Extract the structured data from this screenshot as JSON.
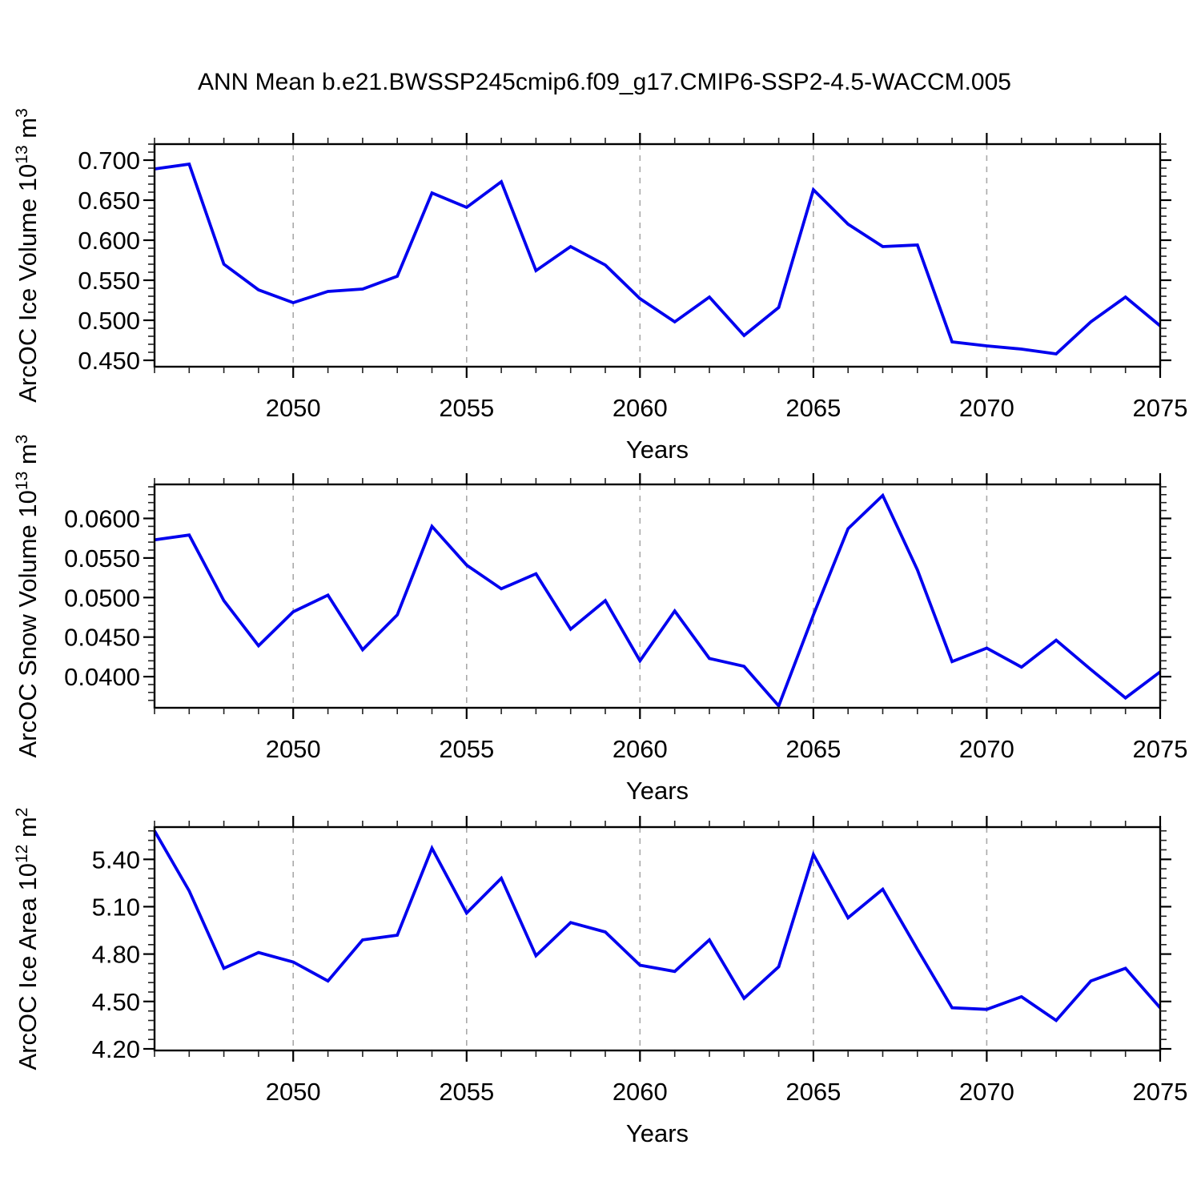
{
  "title": "ANN Mean b.e21.BWSSP245cmip6.f09_g17.CMIP6-SSP2-4.5-WACCM.005",
  "colors": {
    "line": "#0000EE",
    "grid": "#A9A9A9",
    "axis": "#000000",
    "background": "#FFFFFF",
    "text": "#000000"
  },
  "chart_data": [
    {
      "type": "line",
      "name": "ice-volume",
      "ylabel": "ArcOC Ice Volume 10^13 m^3",
      "ylabel_parts": [
        {
          "t": "ArcOC Ice Volume 10"
        },
        {
          "t": "13",
          "sup": true
        },
        {
          "t": " m"
        },
        {
          "t": "3",
          "sup": true
        }
      ],
      "xlabel": "Years",
      "xlim": [
        2046,
        2075
      ],
      "ylim": [
        0.442,
        0.72
      ],
      "xticks_major": [
        2050,
        2055,
        2060,
        2065,
        2070,
        2075
      ],
      "xtick_labels": [
        "2050",
        "2055",
        "2060",
        "2065",
        "2070",
        "2075"
      ],
      "xtick_minor_step": 1,
      "yticks_major": [
        0.45,
        0.5,
        0.55,
        0.6,
        0.65,
        0.7
      ],
      "ytick_labels": [
        "0.450",
        "0.500",
        "0.550",
        "0.600",
        "0.650",
        "0.700"
      ],
      "ytick_minor_step": 0.01,
      "gridlines_x": [
        2050,
        2055,
        2060,
        2065,
        2070
      ],
      "grid": true,
      "legend": null,
      "x": [
        2046,
        2047,
        2048,
        2049,
        2050,
        2051,
        2052,
        2053,
        2054,
        2055,
        2056,
        2057,
        2058,
        2059,
        2060,
        2061,
        2062,
        2063,
        2064,
        2065,
        2066,
        2067,
        2068,
        2069,
        2070,
        2071,
        2072,
        2073,
        2074,
        2075
      ],
      "values": [
        0.689,
        0.695,
        0.57,
        0.538,
        0.522,
        0.536,
        0.539,
        0.555,
        0.659,
        0.641,
        0.673,
        0.562,
        0.592,
        0.569,
        0.527,
        0.498,
        0.529,
        0.481,
        0.516,
        0.663,
        0.62,
        0.592,
        0.594,
        0.473,
        0.468,
        0.464,
        0.458,
        0.498,
        0.529,
        0.493
      ]
    },
    {
      "type": "line",
      "name": "snow-volume",
      "ylabel": "ArcOC Snow Volume 10^13 m^3",
      "ylabel_parts": [
        {
          "t": "ArcOC Snow Volume 10"
        },
        {
          "t": "13",
          "sup": true
        },
        {
          "t": " m"
        },
        {
          "t": "3",
          "sup": true
        }
      ],
      "xlabel": "Years",
      "xlim": [
        2046,
        2075
      ],
      "ylim": [
        0.03606,
        0.0643
      ],
      "xticks_major": [
        2050,
        2055,
        2060,
        2065,
        2070,
        2075
      ],
      "xtick_labels": [
        "2050",
        "2055",
        "2060",
        "2065",
        "2070",
        "2075"
      ],
      "xtick_minor_step": 1,
      "yticks_major": [
        0.04,
        0.045,
        0.05,
        0.055,
        0.06
      ],
      "ytick_labels": [
        "0.0400",
        "0.0450",
        "0.0500",
        "0.0550",
        "0.0600"
      ],
      "ytick_minor_step": 0.001,
      "gridlines_x": [
        2050,
        2055,
        2060,
        2065,
        2070
      ],
      "grid": true,
      "legend": null,
      "x": [
        2046,
        2047,
        2048,
        2049,
        2050,
        2051,
        2052,
        2053,
        2054,
        2055,
        2056,
        2057,
        2058,
        2059,
        2060,
        2061,
        2062,
        2063,
        2064,
        2065,
        2066,
        2067,
        2068,
        2069,
        2070,
        2071,
        2072,
        2073,
        2074,
        2075
      ],
      "values": [
        0.0573,
        0.0579,
        0.0496,
        0.0439,
        0.0482,
        0.0503,
        0.0434,
        0.0478,
        0.059,
        0.0541,
        0.0511,
        0.053,
        0.046,
        0.0496,
        0.042,
        0.0483,
        0.0423,
        0.0413,
        0.0363,
        0.0478,
        0.0587,
        0.0629,
        0.0535,
        0.0419,
        0.0436,
        0.0412,
        0.0446,
        0.0409,
        0.0373,
        0.0406
      ]
    },
    {
      "type": "line",
      "name": "ice-area",
      "ylabel": "ArcOC Ice Area 10^12 m^2",
      "ylabel_parts": [
        {
          "t": "ArcOC Ice Area 10"
        },
        {
          "t": "12",
          "sup": true
        },
        {
          "t": " m"
        },
        {
          "t": "2",
          "sup": true
        }
      ],
      "xlabel": "Years",
      "xlim": [
        2046,
        2075
      ],
      "ylim": [
        4.19,
        5.604
      ],
      "xticks_major": [
        2050,
        2055,
        2060,
        2065,
        2070,
        2075
      ],
      "xtick_labels": [
        "2050",
        "2055",
        "2060",
        "2065",
        "2070",
        "2075"
      ],
      "xtick_minor_step": 1,
      "yticks_major": [
        4.2,
        4.5,
        4.8,
        5.1,
        5.4
      ],
      "ytick_labels": [
        "4.20",
        "4.50",
        "4.80",
        "5.10",
        "5.40"
      ],
      "ytick_minor_step": 0.06,
      "gridlines_x": [
        2050,
        2055,
        2060,
        2065,
        2070
      ],
      "grid": true,
      "legend": null,
      "x": [
        2046,
        2047,
        2048,
        2049,
        2050,
        2051,
        2052,
        2053,
        2054,
        2055,
        2056,
        2057,
        2058,
        2059,
        2060,
        2061,
        2062,
        2063,
        2064,
        2065,
        2066,
        2067,
        2068,
        2069,
        2070,
        2071,
        2072,
        2073,
        2074,
        2075
      ],
      "values": [
        5.58,
        5.2,
        4.71,
        4.81,
        4.75,
        4.63,
        4.89,
        4.92,
        5.47,
        5.06,
        5.28,
        4.79,
        5.0,
        4.94,
        4.73,
        4.69,
        4.89,
        4.52,
        4.72,
        5.43,
        5.03,
        5.21,
        4.83,
        4.46,
        4.45,
        4.53,
        4.38,
        4.63,
        4.71,
        4.46
      ]
    }
  ]
}
